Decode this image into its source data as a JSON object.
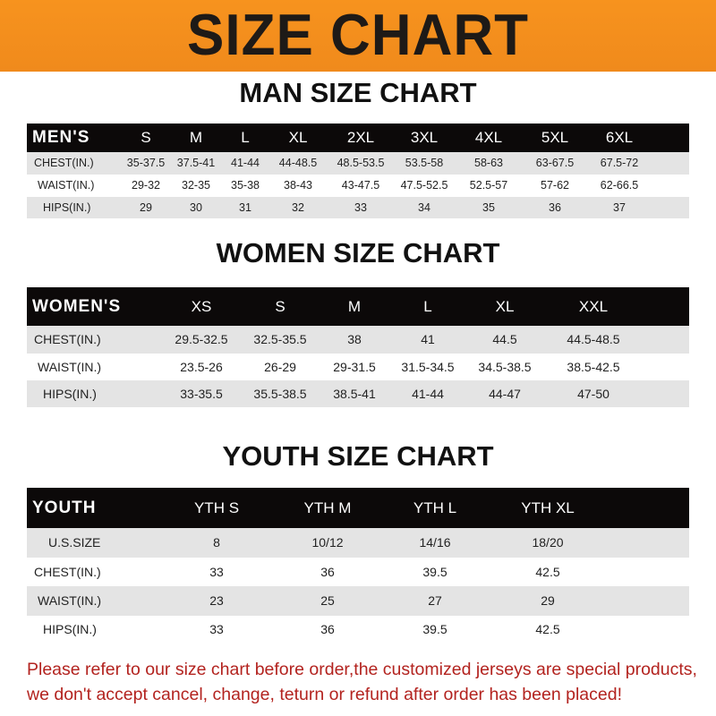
{
  "title": "SIZE CHART",
  "colors": {
    "banner": "#f7931e",
    "header_row": "#0c0909",
    "note": "#b3231f"
  },
  "men": {
    "title": "MAN SIZE CHART",
    "header_label": "MEN'S",
    "sizes": [
      "S",
      "M",
      "L",
      "XL",
      "2XL",
      "3XL",
      "4XL",
      "5XL",
      "6XL"
    ],
    "rows": [
      {
        "label": "CHEST(IN.)",
        "values": [
          "35-37.5",
          "37.5-41",
          "41-44",
          "44-48.5",
          "48.5-53.5",
          "53.5-58",
          "58-63",
          "63-67.5",
          "67.5-72"
        ]
      },
      {
        "label": "WAIST(IN.)",
        "values": [
          "29-32",
          "32-35",
          "35-38",
          "38-43",
          "43-47.5",
          "47.5-52.5",
          "52.5-57",
          "57-62",
          "62-66.5"
        ]
      },
      {
        "label": "HIPS(IN.)",
        "values": [
          "29",
          "30",
          "31",
          "32",
          "33",
          "34",
          "35",
          "36",
          "37"
        ]
      }
    ]
  },
  "women": {
    "title": "WOMEN SIZE CHART",
    "header_label": "WOMEN'S",
    "sizes": [
      "XS",
      "S",
      "M",
      "L",
      "XL",
      "XXL"
    ],
    "rows": [
      {
        "label": "CHEST(IN.)",
        "values": [
          "29.5-32.5",
          "32.5-35.5",
          "38",
          "41",
          "44.5",
          "44.5-48.5"
        ]
      },
      {
        "label": "WAIST(IN.)",
        "values": [
          "23.5-26",
          "26-29",
          "29-31.5",
          "31.5-34.5",
          "34.5-38.5",
          "38.5-42.5"
        ]
      },
      {
        "label": "HIPS(IN.)",
        "values": [
          "33-35.5",
          "35.5-38.5",
          "38.5-41",
          "41-44",
          "44-47",
          "47-50"
        ]
      }
    ]
  },
  "youth": {
    "title": "YOUTH SIZE CHART",
    "header_label": "YOUTH",
    "sizes": [
      "YTH S",
      "YTH M",
      "YTH L",
      "YTH XL"
    ],
    "rows": [
      {
        "label": "U.S.SIZE",
        "values": [
          "8",
          "10/12",
          "14/16",
          "18/20"
        ]
      },
      {
        "label": "CHEST(IN.)",
        "values": [
          "33",
          "36",
          "39.5",
          "42.5"
        ]
      },
      {
        "label": "WAIST(IN.)",
        "values": [
          "23",
          "25",
          "27",
          "29"
        ]
      },
      {
        "label": "HIPS(IN.)",
        "values": [
          "33",
          "36",
          "39.5",
          "42.5"
        ]
      }
    ]
  },
  "note": {
    "line1": "Please refer to our size chart before order,the customized jerseys are special products,",
    "line2": "we don't accept cancel, change, teturn or refund after order has been placed!"
  }
}
